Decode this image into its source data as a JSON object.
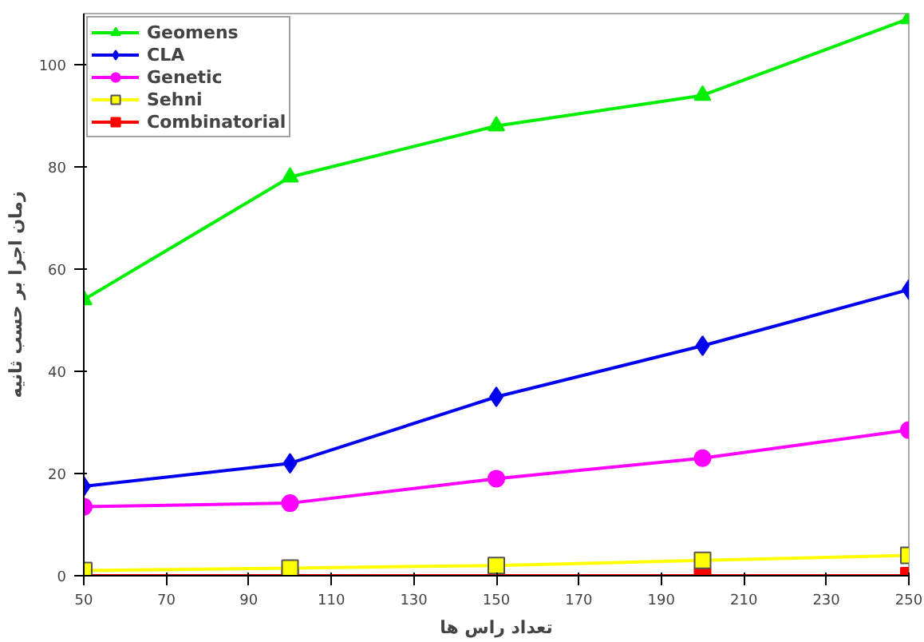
{
  "chart_data": {
    "type": "line",
    "xlabel": "تعداد راس ها",
    "ylabel": "زمان اجرا بر حسب ثانیه",
    "x": [
      50,
      100,
      150,
      200,
      250
    ],
    "xlim": [
      50,
      250
    ],
    "xticks": [
      50,
      70,
      90,
      110,
      130,
      150,
      170,
      190,
      210,
      230,
      250
    ],
    "ylim": [
      0,
      110
    ],
    "yticks": [
      0,
      20,
      40,
      60,
      80,
      100
    ],
    "grid": false,
    "legend": "top left",
    "series": [
      {
        "name": "Geomens",
        "color": "#00ee00",
        "marker": "triangle",
        "values": [
          54,
          78,
          88,
          94,
          109
        ]
      },
      {
        "name": "CLA",
        "color": "#0000ee",
        "marker": "diamond",
        "values": [
          17.5,
          22,
          35,
          45,
          56
        ]
      },
      {
        "name": "Genetic",
        "color": "#ff00ff",
        "marker": "circle",
        "values": [
          13.5,
          14.2,
          19,
          23,
          28.5
        ]
      },
      {
        "name": "Sehni",
        "color": "#ffff00",
        "marker": "square",
        "values": [
          1,
          1.5,
          2,
          3,
          4
        ]
      },
      {
        "name": "Combinatorial",
        "color": "#ff0000",
        "marker": "square",
        "values": [
          0,
          0,
          0,
          0,
          0
        ]
      }
    ]
  }
}
